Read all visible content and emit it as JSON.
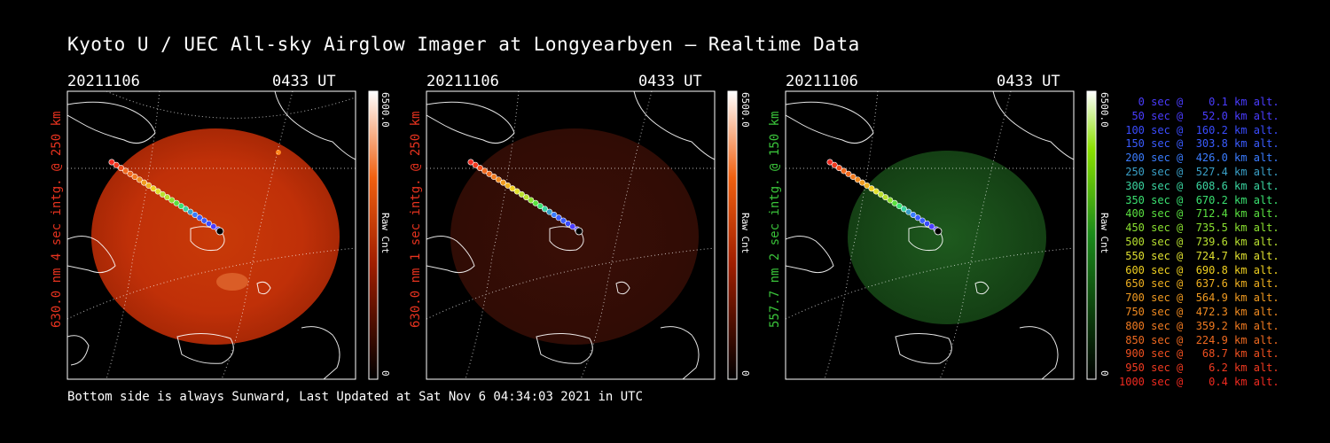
{
  "title": "Kyoto U / UEC All-sky Airglow Imager at Longyearbyen — Realtime Data",
  "footer": "Bottom side is always Sunward, Last Updated at Sat Nov  6 04:34:03 2021 in UTC",
  "panels": [
    {
      "date": "20211106",
      "time": "0433 UT",
      "side_label": "630.0 nm 4 sec intg. @ 250 km",
      "label_color": "#e8331f",
      "cb_max": "6500.0",
      "cb_min": "0",
      "cb_unit": "Raw Cnt"
    },
    {
      "date": "20211106",
      "time": "0433 UT",
      "side_label": "630.0 nm 1 sec intg. @ 250 km",
      "label_color": "#e8331f",
      "cb_max": "6500.0",
      "cb_min": "0",
      "cb_unit": "Raw Cnt"
    },
    {
      "date": "20211106",
      "time": "0433 UT",
      "side_label": "557.7 nm 2 sec intg. @ 150 km",
      "label_color": "#3ac43a",
      "cb_max": "6500.0",
      "cb_min": "0",
      "cb_unit": "Raw Cnt"
    }
  ],
  "legend": [
    {
      "text": "   0 sec @    0.1 km alt.",
      "color": "#4a3cff"
    },
    {
      "text": "  50 sec @   52.0 km alt.",
      "color": "#4a3cff"
    },
    {
      "text": " 100 sec @  160.2 km alt.",
      "color": "#3a4cff"
    },
    {
      "text": " 150 sec @  303.8 km alt.",
      "color": "#3a5cff"
    },
    {
      "text": " 200 sec @  426.0 km alt.",
      "color": "#3a7cff"
    },
    {
      "text": " 250 sec @  527.4 km alt.",
      "color": "#3aa0c8"
    },
    {
      "text": " 300 sec @  608.6 km alt.",
      "color": "#3ad4a0"
    },
    {
      "text": " 350 sec @  670.2 km alt.",
      "color": "#3ae070"
    },
    {
      "text": " 400 sec @  712.4 km alt.",
      "color": "#5ae040"
    },
    {
      "text": " 450 sec @  735.5 km alt.",
      "color": "#8ae030"
    },
    {
      "text": " 500 sec @  739.6 km alt.",
      "color": "#b8e030"
    },
    {
      "text": " 550 sec @  724.7 km alt.",
      "color": "#e0e030"
    },
    {
      "text": " 600 sec @  690.8 km alt.",
      "color": "#f0d020"
    },
    {
      "text": " 650 sec @  637.6 km alt.",
      "color": "#f0b020"
    },
    {
      "text": " 700 sec @  564.9 km alt.",
      "color": "#f09a20"
    },
    {
      "text": " 750 sec @  472.3 km alt.",
      "color": "#f08a20"
    },
    {
      "text": " 800 sec @  359.2 km alt.",
      "color": "#f07a20"
    },
    {
      "text": " 850 sec @  224.9 km alt.",
      "color": "#f06a20"
    },
    {
      "text": " 900 sec @   68.7 km alt.",
      "color": "#f05020"
    },
    {
      "text": " 950 sec @    6.2 km alt.",
      "color": "#f03a20"
    },
    {
      "text": "1000 sec @    0.4 km alt.",
      "color": "#f02a20"
    }
  ]
}
